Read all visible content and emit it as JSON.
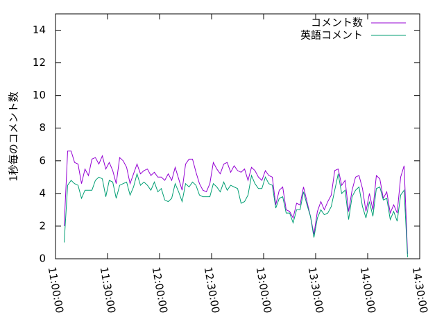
{
  "chart_data": {
    "type": "line",
    "ylabel": "1秒毎のコメント数",
    "x": [
      "11:05:00",
      "11:07:00",
      "11:09:00",
      "11:11:00",
      "11:13:00",
      "11:15:00",
      "11:17:00",
      "11:19:00",
      "11:21:00",
      "11:23:00",
      "11:25:00",
      "11:27:00",
      "11:29:00",
      "11:31:00",
      "11:33:00",
      "11:35:00",
      "11:37:00",
      "11:39:00",
      "11:41:00",
      "11:43:00",
      "11:45:00",
      "11:47:00",
      "11:49:00",
      "11:51:00",
      "11:53:00",
      "11:55:00",
      "11:57:00",
      "11:59:00",
      "12:01:00",
      "12:03:00",
      "12:05:00",
      "12:07:00",
      "12:09:00",
      "12:11:00",
      "12:13:00",
      "12:15:00",
      "12:17:00",
      "12:19:00",
      "12:21:00",
      "12:23:00",
      "12:25:00",
      "12:27:00",
      "12:29:00",
      "12:31:00",
      "12:33:00",
      "12:35:00",
      "12:37:00",
      "12:39:00",
      "12:41:00",
      "12:43:00",
      "12:45:00",
      "12:47:00",
      "12:49:00",
      "12:51:00",
      "12:53:00",
      "12:55:00",
      "12:57:00",
      "12:59:00",
      "13:01:00",
      "13:03:00",
      "13:05:00",
      "13:07:00",
      "13:09:00",
      "13:11:00",
      "13:13:00",
      "13:15:00",
      "13:17:00",
      "13:19:00",
      "13:21:00",
      "13:23:00",
      "13:25:00",
      "13:27:00",
      "13:29:00",
      "13:31:00",
      "13:33:00",
      "13:35:00",
      "13:37:00",
      "13:39:00",
      "13:41:00",
      "13:43:00",
      "13:45:00",
      "13:47:00",
      "13:49:00",
      "13:51:00",
      "13:53:00",
      "13:55:00",
      "13:57:00",
      "13:59:00",
      "14:01:00",
      "14:03:00",
      "14:05:00",
      "14:07:00",
      "14:09:00",
      "14:11:00",
      "14:13:00",
      "14:15:00",
      "14:17:00",
      "14:19:00",
      "14:21:00",
      "14:23:00"
    ],
    "series": [
      {
        "name": "コメント数",
        "color": "#9400d3",
        "values": [
          2.0,
          6.6,
          6.6,
          5.9,
          5.8,
          4.6,
          5.5,
          5.1,
          6.1,
          6.2,
          5.8,
          6.3,
          5.5,
          5.9,
          5.4,
          4.6,
          6.2,
          6.0,
          5.6,
          4.6,
          5.2,
          5.8,
          5.2,
          5.4,
          5.5,
          5.1,
          5.3,
          5.0,
          5.0,
          4.8,
          5.2,
          4.8,
          5.6,
          4.9,
          4.2,
          5.8,
          6.1,
          6.1,
          5.3,
          4.6,
          4.2,
          4.1,
          4.6,
          5.9,
          5.5,
          5.2,
          5.8,
          5.9,
          5.3,
          5.7,
          5.4,
          5.3,
          5.5,
          4.8,
          5.6,
          5.4,
          5.0,
          4.8,
          5.4,
          5.1,
          5.0,
          3.3,
          4.2,
          4.4,
          3.0,
          2.9,
          2.5,
          3.4,
          3.3,
          4.4,
          3.5,
          2.6,
          1.5,
          2.9,
          3.5,
          3.0,
          3.5,
          3.9,
          5.4,
          5.5,
          4.5,
          4.8,
          2.9,
          4.2,
          5.0,
          5.1,
          4.3,
          2.9,
          4.0,
          3.0,
          5.1,
          4.9,
          3.7,
          4.1,
          2.8,
          3.3,
          2.8,
          5.0,
          5.7,
          0.3
        ]
      },
      {
        "name": "英語コメント",
        "color": "#009e73",
        "values": [
          1.0,
          4.5,
          4.8,
          4.6,
          4.5,
          3.7,
          4.2,
          4.2,
          4.2,
          4.8,
          5.0,
          4.9,
          3.8,
          4.8,
          4.7,
          3.7,
          4.5,
          4.6,
          4.7,
          3.9,
          4.4,
          5.2,
          4.5,
          4.7,
          4.5,
          4.2,
          4.7,
          4.1,
          4.3,
          3.6,
          3.5,
          3.7,
          4.6,
          4.1,
          3.5,
          4.6,
          4.4,
          4.7,
          4.5,
          3.9,
          3.8,
          3.8,
          3.8,
          4.6,
          4.4,
          4.1,
          4.7,
          4.2,
          4.5,
          4.4,
          4.3,
          3.4,
          3.5,
          3.9,
          5.1,
          4.6,
          4.3,
          4.3,
          5.0,
          4.6,
          4.5,
          3.1,
          3.7,
          3.8,
          2.8,
          2.8,
          2.2,
          3.0,
          3.0,
          4.1,
          3.3,
          2.6,
          1.3,
          2.5,
          3.0,
          2.7,
          2.8,
          3.2,
          4.2,
          5.2,
          4.0,
          4.2,
          2.4,
          3.8,
          4.2,
          4.4,
          3.2,
          2.5,
          3.5,
          2.6,
          4.3,
          4.4,
          3.6,
          3.7,
          2.4,
          2.9,
          2.3,
          3.9,
          4.2,
          0.1
        ]
      }
    ],
    "xlim": [
      "11:00:00",
      "14:30:00"
    ],
    "xticks": [
      "11:00:00",
      "11:30:00",
      "12:00:00",
      "12:30:00",
      "13:00:00",
      "13:30:00",
      "14:00:00",
      "14:30:00"
    ],
    "ylim": [
      0,
      15
    ],
    "yticks": [
      0,
      2,
      4,
      6,
      8,
      10,
      12,
      14
    ],
    "legend": "top-right"
  }
}
